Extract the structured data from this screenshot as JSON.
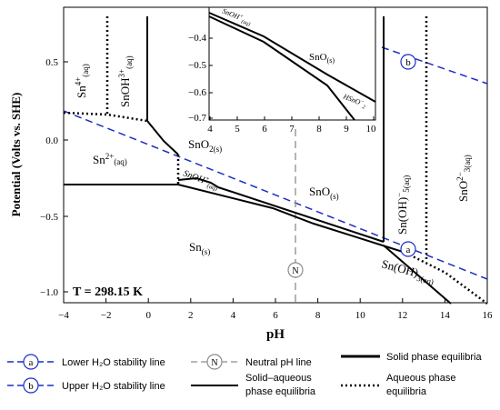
{
  "temperature": "T = 298.15 K",
  "axes": {
    "xlabel": "pH",
    "ylabel": "Potential (Volts vs. SHE)",
    "xticks": [
      "−4",
      "−2",
      "0",
      "2",
      "4",
      "6",
      "8",
      "10",
      "12",
      "14",
      "16"
    ],
    "yticks": [
      "0.5",
      "0.0",
      "−0.5",
      "−1.0"
    ]
  },
  "inset": {
    "xticks": [
      "4",
      "5",
      "6",
      "7",
      "8",
      "9",
      "10"
    ],
    "yticks": [
      "−0.4",
      "−0.5",
      "−0.6",
      "−0.7"
    ]
  },
  "species": {
    "sn4": "Sn",
    "sn4_sup": "4+",
    "sn4_sub": "(aq)",
    "snoh3": "SnOH",
    "snoh3_sup": "3+",
    "snoh3_sub": "(aq)",
    "sn2": "Sn",
    "sn2_sup": "2+",
    "sn2_sub": "(aq)",
    "sno2": "SnO",
    "sno2_num": "2",
    "sno2_sub": "(s)",
    "snoh1": "SnOH",
    "snoh1_sup": "+",
    "snoh1_sub": "(aq)",
    "sno": "SnO",
    "sno_sub": "(s)",
    "sn": "Sn",
    "sn_sub": "(s)",
    "snoh5": "Sn(OH)",
    "snoh5_sup": "−",
    "snoh5_num": "5",
    "snoh5_sub": "(aq)",
    "sno3": "SnO",
    "sno3_sup": "2−",
    "sno3_num": "3",
    "sno3_sub": "(aq)",
    "snoh3aq": "Sn(OH)",
    "snoh3aq_num": "3",
    "snoh3aq_sub": "(aq)",
    "inset_snoh": "SnOH",
    "inset_snoh_sup": "+",
    "inset_snoh_sub": "(aq)",
    "inset_sno": "SnO",
    "inset_sno_sub": "(s)",
    "inset_hsno2": "HSnO",
    "inset_hsno2_sup": "−",
    "inset_hsno2_num": "2"
  },
  "markers": {
    "a": "a",
    "b": "b",
    "n": "N"
  },
  "legend": {
    "lower": "Lower H₂O stability line",
    "upper": "Upper H₂O stability line",
    "neutral": "Neutral pH line",
    "solid_phase_1": "Solid phase equilibria",
    "solid_aqueous_1": "Solid–aqueous",
    "solid_aqueous_2": "phase equilibria",
    "aqueous_1": "Aqueous phase",
    "aqueous_2": "equilibria"
  },
  "colors": {
    "water_line": "#1a2fc2",
    "neutral_line": "#8c8c8c",
    "boundary": "#000000"
  }
}
